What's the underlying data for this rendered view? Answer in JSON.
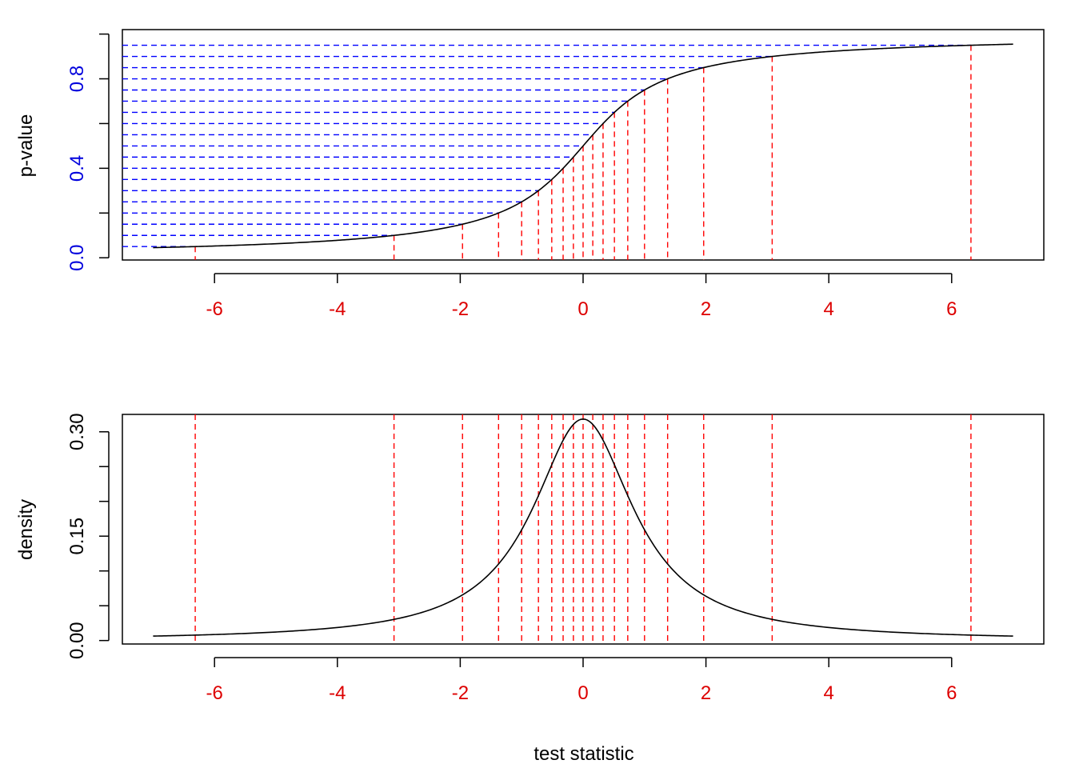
{
  "chart_data": [
    {
      "type": "line",
      "panel": "top",
      "title": "",
      "ylabel": "p-value",
      "xlabel": "",
      "xlim": [
        -7.5,
        7.5
      ],
      "ylim": [
        -0.01,
        1.02
      ],
      "x_ticks": [
        -6,
        -4,
        -2,
        0,
        2,
        4,
        6
      ],
      "x_tick_labels": [
        "-6",
        "-4",
        "-2",
        "0",
        "2",
        "4",
        "6"
      ],
      "y_ticks": [
        0.0,
        0.2,
        0.4,
        0.6,
        0.8,
        1.0
      ],
      "y_tick_labels": [
        "0.0",
        "0.4",
        "0.8"
      ],
      "y_labeled_ticks": [
        0.0,
        0.4,
        0.8
      ],
      "curve": {
        "description": "cumulative distribution of t with 1 df",
        "x_from": -7,
        "x_to": 7,
        "start_value": 0.045,
        "mid_value": 0.5,
        "end_value": 0.955
      },
      "quantile_levels": [
        0.05,
        0.1,
        0.15,
        0.2,
        0.25,
        0.3,
        0.35,
        0.4,
        0.45,
        0.5,
        0.55,
        0.6,
        0.65,
        0.7,
        0.75,
        0.8,
        0.85,
        0.9,
        0.95
      ],
      "quantile_x": [
        -6.314,
        -3.078,
        -1.963,
        -1.376,
        -1.0,
        -0.727,
        -0.51,
        -0.325,
        -0.158,
        0.0,
        0.158,
        0.325,
        0.51,
        0.727,
        1.0,
        1.376,
        1.963,
        3.078,
        6.314
      ],
      "grid": false,
      "colors": {
        "curve": "#000000",
        "horizontal_guides": "#0000ff",
        "vertical_guides": "#ff0000",
        "x_tick_labels": "#dd0000",
        "y_tick_labels": "#0000dd"
      }
    },
    {
      "type": "line",
      "panel": "bottom",
      "title": "",
      "ylabel": "density",
      "xlabel": "test statistic",
      "xlim": [
        -7.5,
        7.5
      ],
      "ylim": [
        -0.005,
        0.325
      ],
      "x_ticks": [
        -6,
        -4,
        -2,
        0,
        2,
        4,
        6
      ],
      "x_tick_labels": [
        "-6",
        "-4",
        "-2",
        "0",
        "2",
        "4",
        "6"
      ],
      "y_ticks": [
        0.0,
        0.05,
        0.1,
        0.15,
        0.2,
        0.25,
        0.3
      ],
      "y_tick_labels": [
        "0.00",
        "0.15",
        "0.30"
      ],
      "y_labeled_ticks": [
        0.0,
        0.15,
        0.3
      ],
      "curve": {
        "description": "density of t with 1 df (Cauchy)",
        "x_from": -7,
        "x_to": 7,
        "peak_value": 0.318
      },
      "quantile_x": [
        -6.314,
        -3.078,
        -1.963,
        -1.376,
        -1.0,
        -0.727,
        -0.51,
        -0.325,
        -0.158,
        0.0,
        0.158,
        0.325,
        0.51,
        0.727,
        1.0,
        1.376,
        1.963,
        3.078,
        6.314
      ],
      "grid": false,
      "colors": {
        "curve": "#000000",
        "vertical_guides": "#ff0000",
        "x_tick_labels": "#dd0000",
        "y_tick_labels": "#000000"
      }
    }
  ]
}
